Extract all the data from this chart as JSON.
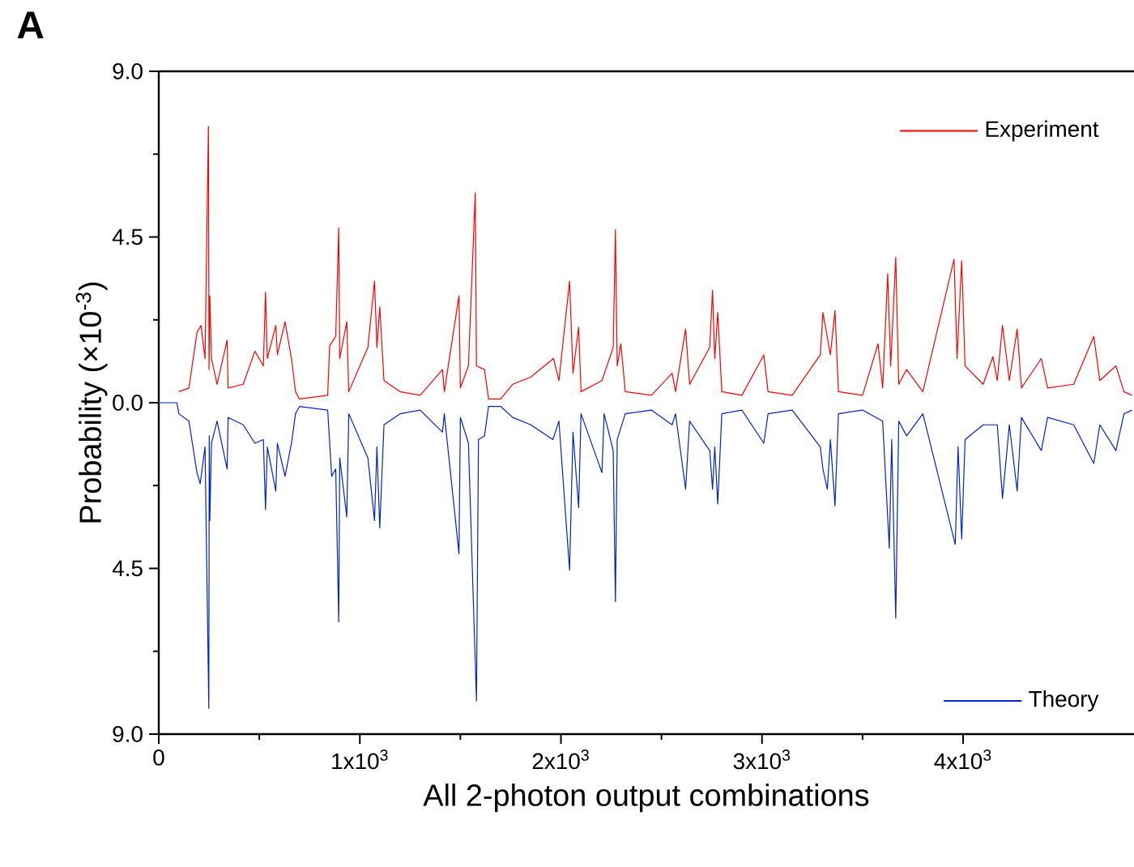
{
  "chart_data": {
    "type": "line",
    "xlabel": "All 2-photon output combinations",
    "ylabel": "Probability (×10$^{-3}$)",
    "annotations": [
      "**A**"
    ],
    "xlim": [
      0,
      4850
    ],
    "xticks": [
      0,
      {
        "value": 1000,
        "label": "1x10$^{3}$"
      },
      {
        "value": 2000,
        "label": "2x10$^{3}$"
      },
      {
        "value": 3000,
        "label": "3x10$^{3}$"
      },
      {
        "value": 4000,
        "label": "4x10$^{3}$"
      }
    ],
    "ylim": [
      -9,
      9
    ],
    "yticks": [
      {
        "value": -9,
        "label": "9.0"
      },
      {
        "value": -4.5,
        "label": "4.5"
      },
      {
        "value": 0,
        "label": "0.0"
      },
      {
        "value": 4.5,
        "label": "4.5"
      },
      {
        "value": 9,
        "label": "9.0"
      }
    ],
    "legend": "right",
    "grid": false,
    "marker": "none",
    "line_style": "solid",
    "series": [
      {
        "name": "Experiment",
        "color": "#ff0000",
        "x": [
          100,
          150,
          190,
          210,
          230,
          247,
          250,
          254,
          262,
          290,
          340,
          345,
          420,
          478,
          520,
          531,
          540,
          582,
          590,
          628,
          660,
          680,
          700,
          840,
          850,
          880,
          895,
          900,
          935,
          945,
          1040,
          1073,
          1085,
          1099,
          1120,
          1200,
          1300,
          1411,
          1420,
          1493,
          1500,
          1540,
          1574,
          1580,
          1620,
          1640,
          1700,
          1760,
          1850,
          1963,
          1990,
          2043,
          2060,
          2088,
          2100,
          2204,
          2260,
          2271,
          2280,
          2298,
          2320,
          2450,
          2553,
          2570,
          2620,
          2640,
          2740,
          2754,
          2765,
          2780,
          2800,
          2900,
          3009,
          3030,
          3150,
          3290,
          3303,
          3340,
          3363,
          3380,
          3500,
          3577,
          3600,
          3625,
          3640,
          3665,
          3680,
          3719,
          3800,
          3955,
          3970,
          3993,
          4010,
          4100,
          4148,
          4170,
          4196,
          4230,
          4269,
          4290,
          4389,
          4420,
          4550,
          4650,
          4680,
          4760,
          4800,
          4840
        ],
        "values": [
          0.3,
          0.4,
          1.9,
          2.1,
          1.2,
          7.5,
          0.9,
          2.9,
          1.2,
          0.5,
          1.7,
          0.4,
          0.5,
          1.4,
          1.0,
          3.0,
          1.2,
          2.1,
          1.3,
          2.2,
          1.2,
          0.3,
          0.1,
          0.2,
          1.55,
          1.8,
          4.75,
          1.2,
          2.2,
          0.3,
          1.5,
          3.3,
          1.5,
          2.6,
          0.6,
          0.3,
          0.2,
          0.9,
          0.3,
          2.9,
          0.4,
          1.0,
          5.7,
          1.0,
          0.9,
          0.1,
          0.1,
          0.5,
          0.7,
          1.2,
          0.6,
          3.3,
          0.8,
          2.05,
          0.3,
          0.6,
          1.5,
          4.7,
          1.0,
          1.6,
          0.3,
          0.2,
          0.8,
          0.3,
          2.0,
          0.5,
          1.5,
          3.05,
          1.2,
          2.45,
          0.3,
          0.2,
          1.3,
          0.3,
          0.2,
          1.3,
          2.45,
          1.3,
          2.5,
          0.3,
          0.2,
          1.6,
          0.4,
          3.5,
          1.0,
          3.95,
          0.5,
          0.9,
          0.3,
          3.9,
          1.2,
          3.85,
          1.0,
          0.5,
          1.25,
          0.6,
          2.1,
          0.6,
          2.0,
          0.4,
          1.2,
          0.4,
          0.5,
          1.8,
          0.6,
          1.0,
          0.3,
          0.2
        ]
      },
      {
        "name": "Theory",
        "color": "#0022cc",
        "x": [
          0,
          90,
          100,
          150,
          190,
          206,
          230,
          249,
          251,
          254,
          262,
          290,
          340,
          345,
          420,
          478,
          520,
          531,
          540,
          582,
          590,
          628,
          660,
          680,
          700,
          840,
          860,
          880,
          895,
          900,
          935,
          945,
          1040,
          1073,
          1085,
          1099,
          1120,
          1200,
          1300,
          1411,
          1420,
          1493,
          1500,
          1540,
          1580,
          1590,
          1620,
          1640,
          1700,
          1760,
          1850,
          1960,
          1990,
          2043,
          2060,
          2088,
          2100,
          2204,
          2215,
          2260,
          2271,
          2280,
          2320,
          2450,
          2553,
          2570,
          2620,
          2640,
          2740,
          2754,
          2765,
          2780,
          2800,
          2900,
          3009,
          3030,
          3150,
          3290,
          3303,
          3325,
          3340,
          3363,
          3380,
          3500,
          3600,
          3633,
          3645,
          3665,
          3680,
          3719,
          3800,
          3961,
          3975,
          3993,
          4010,
          4100,
          4170,
          4196,
          4230,
          4269,
          4290,
          4389,
          4420,
          4550,
          4650,
          4680,
          4760,
          4800,
          4840
        ],
        "values": [
          0,
          0,
          -0.3,
          -0.5,
          -1.9,
          -2.2,
          -1.2,
          -8.3,
          -0.9,
          -3.2,
          -1.1,
          -0.5,
          -1.8,
          -0.4,
          -0.6,
          -1.1,
          -1.0,
          -2.9,
          -1.2,
          -2.4,
          -1.1,
          -2.0,
          -1.1,
          -0.3,
          -0.1,
          -0.2,
          -2.0,
          -1.8,
          -5.95,
          -1.5,
          -3.1,
          -0.3,
          -1.5,
          -3.2,
          -1.2,
          -3.4,
          -0.6,
          -0.3,
          -0.2,
          -0.8,
          -0.3,
          -4.1,
          -0.4,
          -1.1,
          -8.1,
          -1.0,
          -0.9,
          -0.1,
          -0.1,
          -0.4,
          -0.6,
          -1.0,
          -0.5,
          -4.55,
          -0.8,
          -2.85,
          -0.3,
          -1.9,
          -0.3,
          -1.3,
          -5.4,
          -1.0,
          -0.3,
          -0.2,
          -0.6,
          -0.3,
          -2.35,
          -0.5,
          -1.3,
          -2.35,
          -1.2,
          -2.75,
          -0.3,
          -0.2,
          -1.1,
          -0.3,
          -0.2,
          -1.2,
          -1.8,
          -2.35,
          -1.0,
          -2.8,
          -0.3,
          -0.2,
          -0.5,
          -3.95,
          -1.0,
          -5.85,
          -0.5,
          -0.9,
          -0.3,
          -3.85,
          -1.2,
          -3.7,
          -1.0,
          -0.6,
          -0.6,
          -2.6,
          -0.6,
          -2.4,
          -0.4,
          -1.3,
          -0.4,
          -0.6,
          -1.65,
          -0.6,
          -1.3,
          -0.3,
          -0.2
        ]
      }
    ]
  }
}
